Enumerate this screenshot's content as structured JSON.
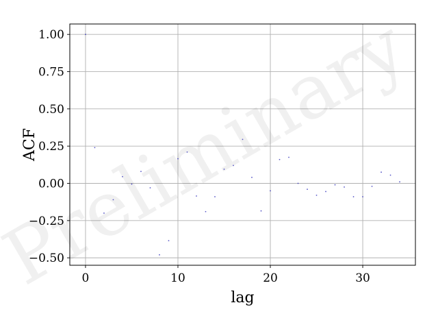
{
  "chart_data": {
    "type": "scatter",
    "xlabel": "lag",
    "ylabel": "ACF",
    "xlim": [
      -1.7,
      35.7
    ],
    "ylim": [
      -0.55,
      1.07
    ],
    "xticks": [
      0,
      10,
      20,
      30
    ],
    "xtick_labels": [
      "0",
      "10",
      "20",
      "30"
    ],
    "yticks": [
      -0.5,
      -0.25,
      0.0,
      0.25,
      0.5,
      0.75,
      1.0
    ],
    "ytick_labels": [
      "−0.50",
      "−0.25",
      "0.00",
      "0.25",
      "0.50",
      "0.75",
      "1.00"
    ],
    "grid": true,
    "marker_color": "#1f1fb4",
    "x": [
      0,
      1,
      2,
      3,
      4,
      5,
      6,
      7,
      8,
      9,
      10,
      11,
      12,
      13,
      14,
      15,
      16,
      17,
      18,
      19,
      20,
      21,
      22,
      23,
      24,
      25,
      26,
      27,
      28,
      29,
      30,
      31,
      32,
      33,
      34
    ],
    "values": [
      1.0,
      0.24,
      -0.2,
      -0.11,
      0.045,
      -0.005,
      0.08,
      -0.03,
      -0.48,
      -0.385,
      0.165,
      0.21,
      -0.085,
      -0.19,
      -0.09,
      0.095,
      0.12,
      0.295,
      0.04,
      -0.185,
      -0.05,
      0.16,
      0.175,
      0.0,
      -0.04,
      -0.08,
      -0.055,
      -0.01,
      -0.025,
      -0.09,
      -0.09,
      -0.02,
      0.075,
      0.055,
      0.01
    ],
    "watermark": "Preliminary"
  }
}
